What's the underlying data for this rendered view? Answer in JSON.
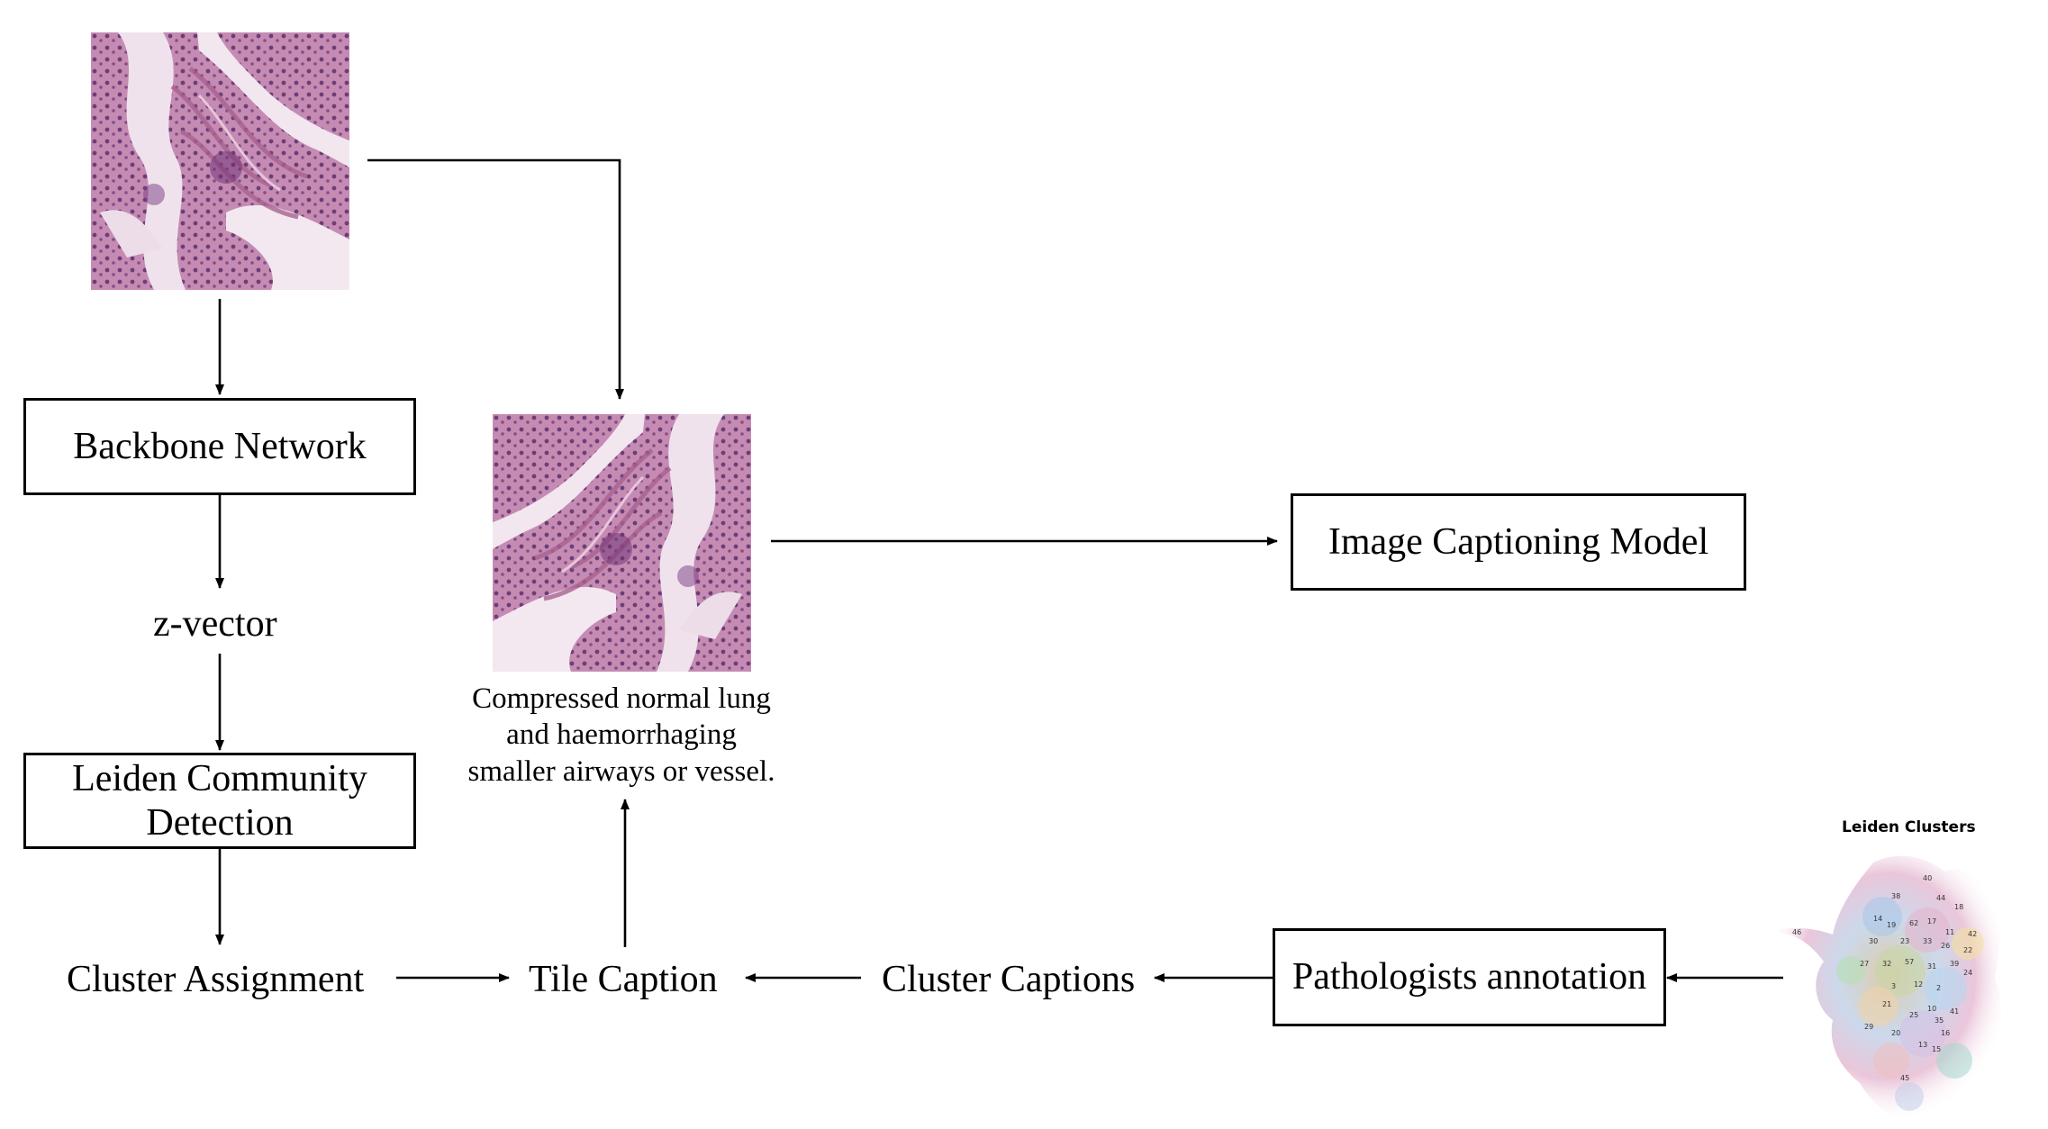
{
  "nodes": {
    "backbone": "Backbone Network",
    "zvector": "z-vector",
    "leiden_line1": "Leiden Community",
    "leiden_line2": "Detection",
    "cluster_assignment": "Cluster Assignment",
    "tile_caption": "Tile Caption",
    "cluster_captions": "Cluster Captions",
    "pathologists": "Pathologists annotation",
    "image_captioning": "Image Captioning Model"
  },
  "caption_text": {
    "line1": "Compressed normal lung",
    "line2": "and haemorrhaging",
    "line3": "smaller airways or vessel."
  },
  "umap": {
    "title": "Leiden Clusters"
  },
  "colors": {
    "tissue_background": "#c98fb6",
    "tissue_dark": "#5a2a6b",
    "tissue_light": "#f1e4ee",
    "line": "#000000"
  }
}
